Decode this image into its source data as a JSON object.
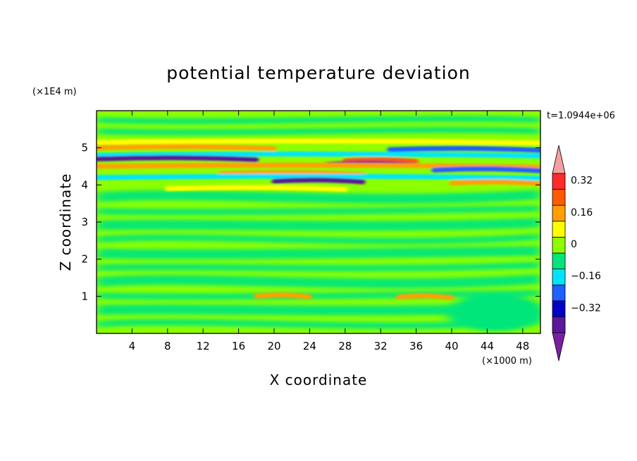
{
  "chart_data": {
    "type": "heatmap",
    "title": "potential temperature deviation",
    "xlabel": "X coordinate",
    "ylabel": "Z coordinate",
    "x_unit": "(×1000 m)",
    "y_unit": "(×1E4 m)",
    "time_label": "t=1.0944e+06",
    "xlim": [
      0,
      50
    ],
    "ylim": [
      0,
      6
    ],
    "x_ticks": [
      4,
      8,
      12,
      16,
      20,
      24,
      28,
      32,
      36,
      40,
      44,
      48
    ],
    "y_ticks": [
      1,
      2,
      3,
      4,
      5
    ],
    "colorbar": {
      "levels": [
        -0.4,
        -0.32,
        -0.24,
        -0.16,
        -0.08,
        0,
        0.08,
        0.16,
        0.24,
        0.32,
        0.4
      ],
      "labeled_ticks": [
        {
          "value": 0.32,
          "label": "0.32"
        },
        {
          "value": 0.16,
          "label": "0.16"
        },
        {
          "value": 0,
          "label": "0"
        },
        {
          "value": -0.16,
          "label": "−0.16"
        },
        {
          "value": -0.32,
          "label": "−0.32"
        }
      ],
      "colors": [
        "#5a189a",
        "#0000c8",
        "#1e5fff",
        "#00e5ff",
        "#00e67a",
        "#8cff00",
        "#ffff00",
        "#ffa000",
        "#ff5a00",
        "#ff2a2a"
      ],
      "under_color": "#7b1fa2",
      "over_color": "#f4a0a0"
    },
    "bands": [
      {
        "z": 5.15,
        "x0": 0,
        "x1": 50,
        "value": 0.08
      },
      {
        "z": 5.0,
        "x0": 0,
        "x1": 20,
        "value": 0.2
      },
      {
        "z": 4.95,
        "x0": 33,
        "x1": 50,
        "value": -0.24
      },
      {
        "z": 4.8,
        "x0": 0,
        "x1": 50,
        "value": -0.12
      },
      {
        "z": 4.7,
        "x0": 0,
        "x1": 18,
        "value": -0.36
      },
      {
        "z": 4.65,
        "x0": 28,
        "x1": 36,
        "value": 0.28
      },
      {
        "z": 4.55,
        "x0": 26,
        "x1": 36,
        "value": -0.34
      },
      {
        "z": 4.5,
        "x0": 0,
        "x1": 50,
        "value": 0.16
      },
      {
        "z": 4.4,
        "x0": 38,
        "x1": 50,
        "value": -0.22
      },
      {
        "z": 4.3,
        "x0": 14,
        "x1": 30,
        "value": 0.22
      },
      {
        "z": 4.2,
        "x0": 0,
        "x1": 50,
        "value": -0.14
      },
      {
        "z": 4.1,
        "x0": 20,
        "x1": 30,
        "value": -0.38
      },
      {
        "z": 4.05,
        "x0": 40,
        "x1": 50,
        "value": 0.18
      },
      {
        "z": 3.9,
        "x0": 8,
        "x1": 28,
        "value": 0.1
      },
      {
        "z": 1.0,
        "x0": 18,
        "x1": 24,
        "value": 0.2
      },
      {
        "z": 0.98,
        "x0": 34,
        "x1": 40,
        "value": 0.16
      }
    ]
  }
}
